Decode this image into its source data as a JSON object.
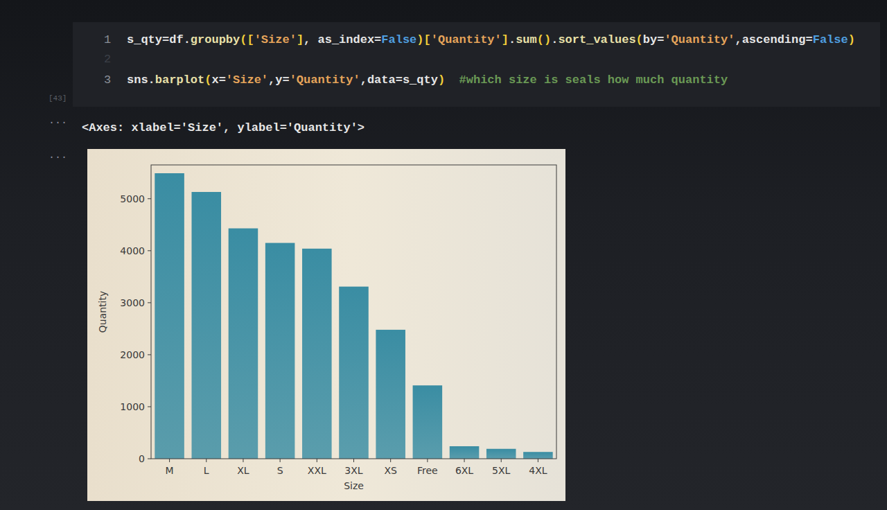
{
  "chart_data": {
    "type": "bar",
    "xlabel": "Size",
    "ylabel": "Quantity",
    "categories": [
      "M",
      "L",
      "XL",
      "S",
      "XXL",
      "3XL",
      "XS",
      "Free",
      "6XL",
      "5XL",
      "4XL"
    ],
    "values": [
      5490,
      5130,
      4430,
      4150,
      4040,
      3310,
      2480,
      1410,
      240,
      190,
      130
    ],
    "color": "#3a8da3",
    "ylim": [
      0,
      5650
    ],
    "yticks": [
      0,
      1000,
      2000,
      3000,
      4000,
      5000
    ],
    "grid": false
  },
  "notebook": {
    "lines": [
      {
        "number": "1",
        "code": "s_qty=df.groupby(['Size'], as_index=False)['Quantity'].sum().sort_values(by='Quantity',ascending=False)"
      },
      {
        "number": "2"
      },
      {
        "number": "3",
        "code": "sns.barplot(x='Size',y='Quantity',data=s_qty)  #which size is seals how much quantity"
      }
    ],
    "execution_count": "[43]",
    "output_prompts": [
      "...",
      "..."
    ],
    "output": "<Axes: xlabel='Size', ylabel='Quantity'>"
  }
}
